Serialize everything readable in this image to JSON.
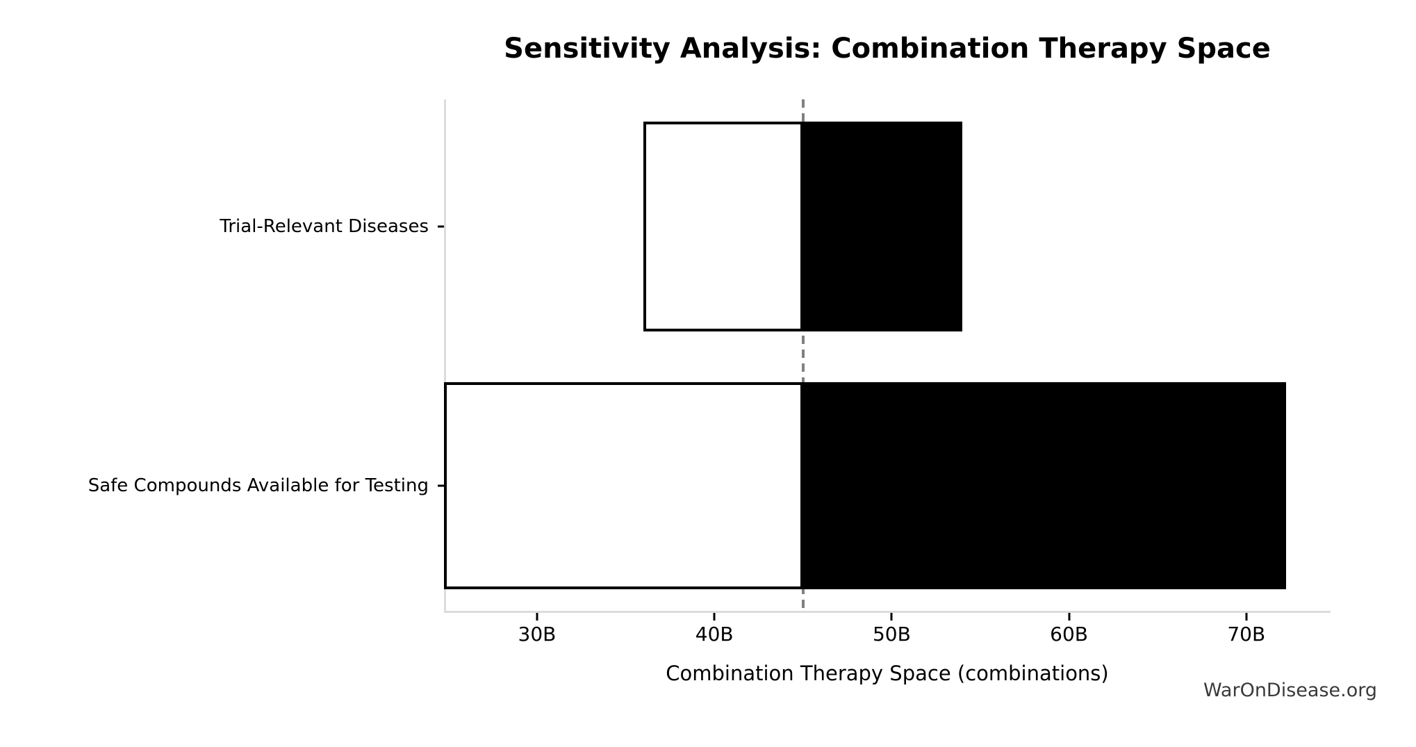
{
  "watermark": "WarOnDisease.org",
  "chart_data": {
    "type": "bar",
    "subtype": "tornado-sensitivity",
    "orientation": "horizontal",
    "title": "Sensitivity Analysis: Combination Therapy Space",
    "xlabel": "Combination Therapy Space (combinations)",
    "unit": "B = billions of combinations",
    "baseline": 45,
    "xlim": [
      24.75,
      74.75
    ],
    "xticks": [
      {
        "value": 30,
        "label": "30B"
      },
      {
        "value": 40,
        "label": "40B"
      },
      {
        "value": 50,
        "label": "50B"
      },
      {
        "value": 60,
        "label": "60B"
      },
      {
        "value": 70,
        "label": "70B"
      }
    ],
    "bars": [
      {
        "category": "Trial-Relevant Diseases",
        "low": 36,
        "high": 54
      },
      {
        "category": "Safe Compounds Available for Testing",
        "low": 24.75,
        "high": 72.25
      }
    ],
    "grid": false,
    "legend": false,
    "colors": {
      "below_baseline_fill": "#ffffff",
      "above_baseline_fill": "#000000",
      "bar_edge": "#000000",
      "baseline_line": "#808080",
      "axis_spine": "#dcdcdc",
      "text": "#000000",
      "watermark_text": "#3a3a3a"
    }
  }
}
